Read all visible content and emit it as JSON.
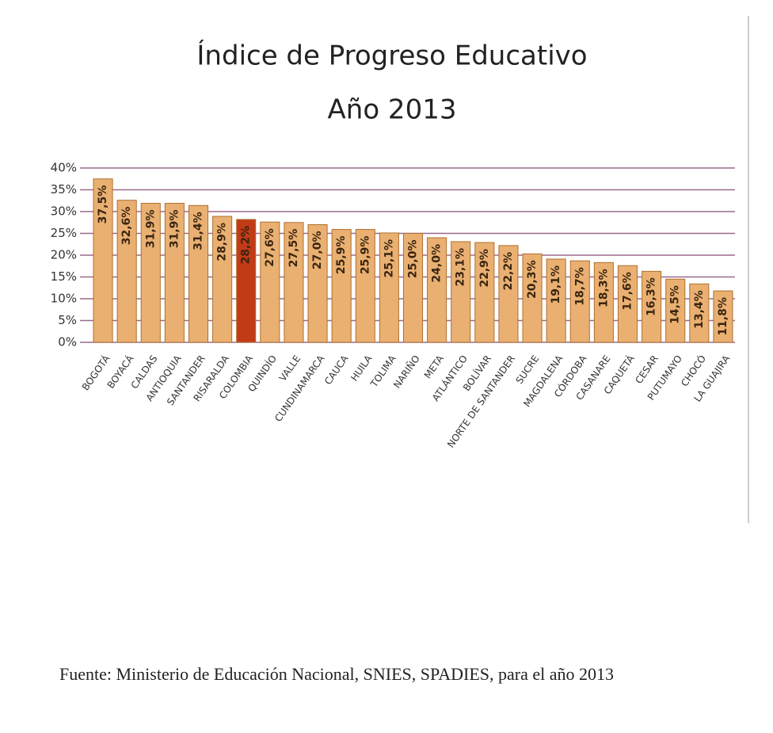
{
  "chart_data": {
    "type": "bar",
    "title": "Índice  de Progreso Educativo",
    "subtitle": "Año 2013",
    "categories": [
      "BOGOTÁ",
      "BOYACÁ",
      "CALDAS",
      "ANTIOQUIA",
      "SANTANDER",
      "RISARALDA",
      "COLOMBIA",
      "QUINDÍO",
      "VALLE",
      "CUNDINAMARCA",
      "CAUCA",
      "HUILA",
      "TOLIMA",
      "NARIÑO",
      "META",
      "ATLÁNTICO",
      "BOLÍVAR",
      "NORTE DE SANTANDER",
      "SUCRE",
      "MAGDALENA",
      "CÓRDOBA",
      "CASANARE",
      "CAQUETÁ",
      "CESAR",
      "PUTUMAYO",
      "CHOCÓ",
      "LA GUAJIRA"
    ],
    "values": [
      37.5,
      32.6,
      31.9,
      31.9,
      31.4,
      28.9,
      28.2,
      27.6,
      27.5,
      27.0,
      25.9,
      25.9,
      25.1,
      25.0,
      24.0,
      23.1,
      22.9,
      22.2,
      20.3,
      19.1,
      18.7,
      18.3,
      17.6,
      16.3,
      14.5,
      13.4,
      11.8
    ],
    "value_labels": [
      "37,5%",
      "32,6%",
      "31,9%",
      "31,9%",
      "31,4%",
      "28,9%",
      "28,2%",
      "27,6%",
      "27,5%",
      "27,0%",
      "25,9%",
      "25,9%",
      "25,1%",
      "25,0%",
      "24,0%",
      "23,1%",
      "22,9%",
      "22,2%",
      "20,3%",
      "19,1%",
      "18,7%",
      "18,3%",
      "17,6%",
      "16,3%",
      "14,5%",
      "13,4%",
      "11,8%"
    ],
    "colors": [
      "#e9b072",
      "#e9b072",
      "#e9b072",
      "#e9b072",
      "#e9b072",
      "#e9b072",
      "#c23b17",
      "#e9b072",
      "#e9b072",
      "#e9b072",
      "#e9b072",
      "#e9b072",
      "#e9b072",
      "#e9b072",
      "#e9b072",
      "#e9b072",
      "#e9b072",
      "#e9b072",
      "#e9b072",
      "#e9b072",
      "#e9b072",
      "#e9b072",
      "#e9b072",
      "#e9b072",
      "#e9b072",
      "#e9b072",
      "#e9b072"
    ],
    "ylim": [
      0,
      40
    ],
    "yticks": [
      {
        "value": 0,
        "label": "0%"
      },
      {
        "value": 5,
        "label": "5%"
      },
      {
        "value": 10,
        "label": "10%"
      },
      {
        "value": 15,
        "label": "15%"
      },
      {
        "value": 20,
        "label": "20%"
      },
      {
        "value": 25,
        "label": "25%"
      },
      {
        "value": 30,
        "label": "30%"
      },
      {
        "value": 35,
        "label": "35%"
      },
      {
        "value": 40,
        "label": "40%"
      }
    ],
    "grid": true,
    "source": "Fuente: Ministerio de Educación Nacional, SNIES, SPADIES, para el año 2013"
  }
}
